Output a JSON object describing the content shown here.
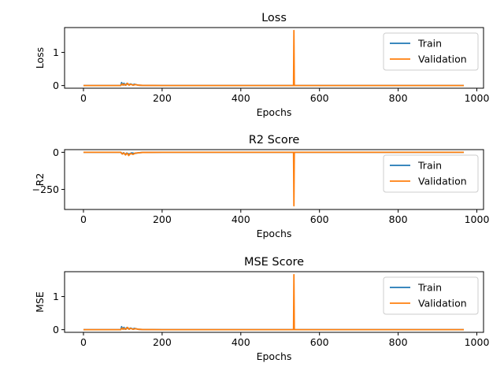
{
  "chart_data": [
    {
      "type": "line",
      "title": "Loss",
      "xlabel": "Epochs",
      "ylabel": "Loss",
      "xlim": [
        -48,
        1017
      ],
      "ylim": [
        -0.08,
        1.75
      ],
      "xticks": [
        0,
        200,
        400,
        600,
        800,
        1000
      ],
      "xtick_labels": [
        "0",
        "200",
        "400",
        "600",
        "800",
        "1000"
      ],
      "yticks": [
        0,
        1
      ],
      "ytick_labels": [
        "0",
        "1"
      ],
      "grid": false,
      "legend_position": "top-right",
      "series": [
        {
          "name": "Train",
          "color": "#1f77b4",
          "x": [
            0,
            95,
            97,
            100,
            103,
            106,
            110,
            115,
            120,
            125,
            130,
            140,
            150,
            200,
            534,
            535,
            536,
            537,
            800,
            967
          ],
          "y": [
            0.0,
            0.0,
            0.09,
            0.02,
            0.07,
            0.01,
            0.06,
            0.02,
            0.05,
            0.02,
            0.04,
            0.01,
            0.005,
            0.0,
            0.0,
            0.0,
            0.0,
            0.0,
            0.0,
            0.0
          ]
        },
        {
          "name": "Validation",
          "color": "#ff7f0e",
          "x": [
            0,
            95,
            98,
            101,
            104,
            108,
            112,
            116,
            120,
            126,
            132,
            140,
            150,
            200,
            534,
            535,
            536,
            537,
            800,
            967
          ],
          "y": [
            0.0,
            0.0,
            0.05,
            0.01,
            0.04,
            0.01,
            0.07,
            0.01,
            0.04,
            0.01,
            0.03,
            0.01,
            0.005,
            0.0,
            0.0,
            1.66,
            0.0,
            0.0,
            0.0,
            0.0
          ]
        }
      ]
    },
    {
      "type": "line",
      "title": "R2 Score",
      "xlabel": "Epochs",
      "ylabel": "R2",
      "xlim": [
        -48,
        1017
      ],
      "ylim": [
        -385,
        18
      ],
      "xticks": [
        0,
        200,
        400,
        600,
        800,
        1000
      ],
      "xtick_labels": [
        "0",
        "200",
        "400",
        "600",
        "800",
        "1000"
      ],
      "yticks": [
        0,
        -250
      ],
      "ytick_labels": [
        "0",
        "−250"
      ],
      "grid": false,
      "legend_position": "top-right",
      "series": [
        {
          "name": "Train",
          "color": "#1f77b4",
          "x": [
            0,
            95,
            98,
            102,
            106,
            110,
            116,
            122,
            130,
            140,
            150,
            200,
            534,
            535,
            536,
            537,
            800,
            967
          ],
          "y": [
            0,
            0,
            -10,
            -3,
            -15,
            -5,
            -12,
            -4,
            -8,
            -3,
            -1,
            0,
            0,
            0,
            0,
            0,
            0,
            0
          ]
        },
        {
          "name": "Validation",
          "color": "#ff7f0e",
          "x": [
            0,
            95,
            99,
            103,
            107,
            111,
            115,
            120,
            126,
            132,
            140,
            150,
            200,
            534,
            535,
            536,
            537,
            800,
            967
          ],
          "y": [
            0,
            0,
            -12,
            -4,
            -18,
            -6,
            -22,
            -8,
            -14,
            -5,
            -3,
            -1,
            0,
            0,
            -360,
            0,
            0,
            0,
            0
          ]
        }
      ]
    },
    {
      "type": "line",
      "title": "MSE Score",
      "xlabel": "Epochs",
      "ylabel": "MSE",
      "xlim": [
        -48,
        1017
      ],
      "ylim": [
        -0.08,
        1.75
      ],
      "xticks": [
        0,
        200,
        400,
        600,
        800,
        1000
      ],
      "xtick_labels": [
        "0",
        "200",
        "400",
        "600",
        "800",
        "1000"
      ],
      "yticks": [
        0,
        1
      ],
      "ytick_labels": [
        "0",
        "1"
      ],
      "grid": false,
      "legend_position": "top-right",
      "series": [
        {
          "name": "Train",
          "color": "#1f77b4",
          "x": [
            0,
            95,
            97,
            100,
            103,
            106,
            110,
            115,
            120,
            125,
            130,
            140,
            150,
            200,
            534,
            535,
            536,
            537,
            800,
            967
          ],
          "y": [
            0.0,
            0.0,
            0.09,
            0.02,
            0.07,
            0.01,
            0.06,
            0.02,
            0.05,
            0.02,
            0.04,
            0.01,
            0.005,
            0.0,
            0.0,
            0.0,
            0.0,
            0.0,
            0.0,
            0.0
          ]
        },
        {
          "name": "Validation",
          "color": "#ff7f0e",
          "x": [
            0,
            95,
            98,
            101,
            104,
            108,
            112,
            116,
            120,
            126,
            132,
            140,
            150,
            200,
            534,
            535,
            536,
            537,
            800,
            967
          ],
          "y": [
            0.0,
            0.0,
            0.05,
            0.01,
            0.04,
            0.01,
            0.07,
            0.01,
            0.04,
            0.01,
            0.03,
            0.01,
            0.005,
            0.0,
            0.0,
            1.66,
            0.0,
            0.0,
            0.0,
            0.0
          ]
        }
      ]
    }
  ]
}
